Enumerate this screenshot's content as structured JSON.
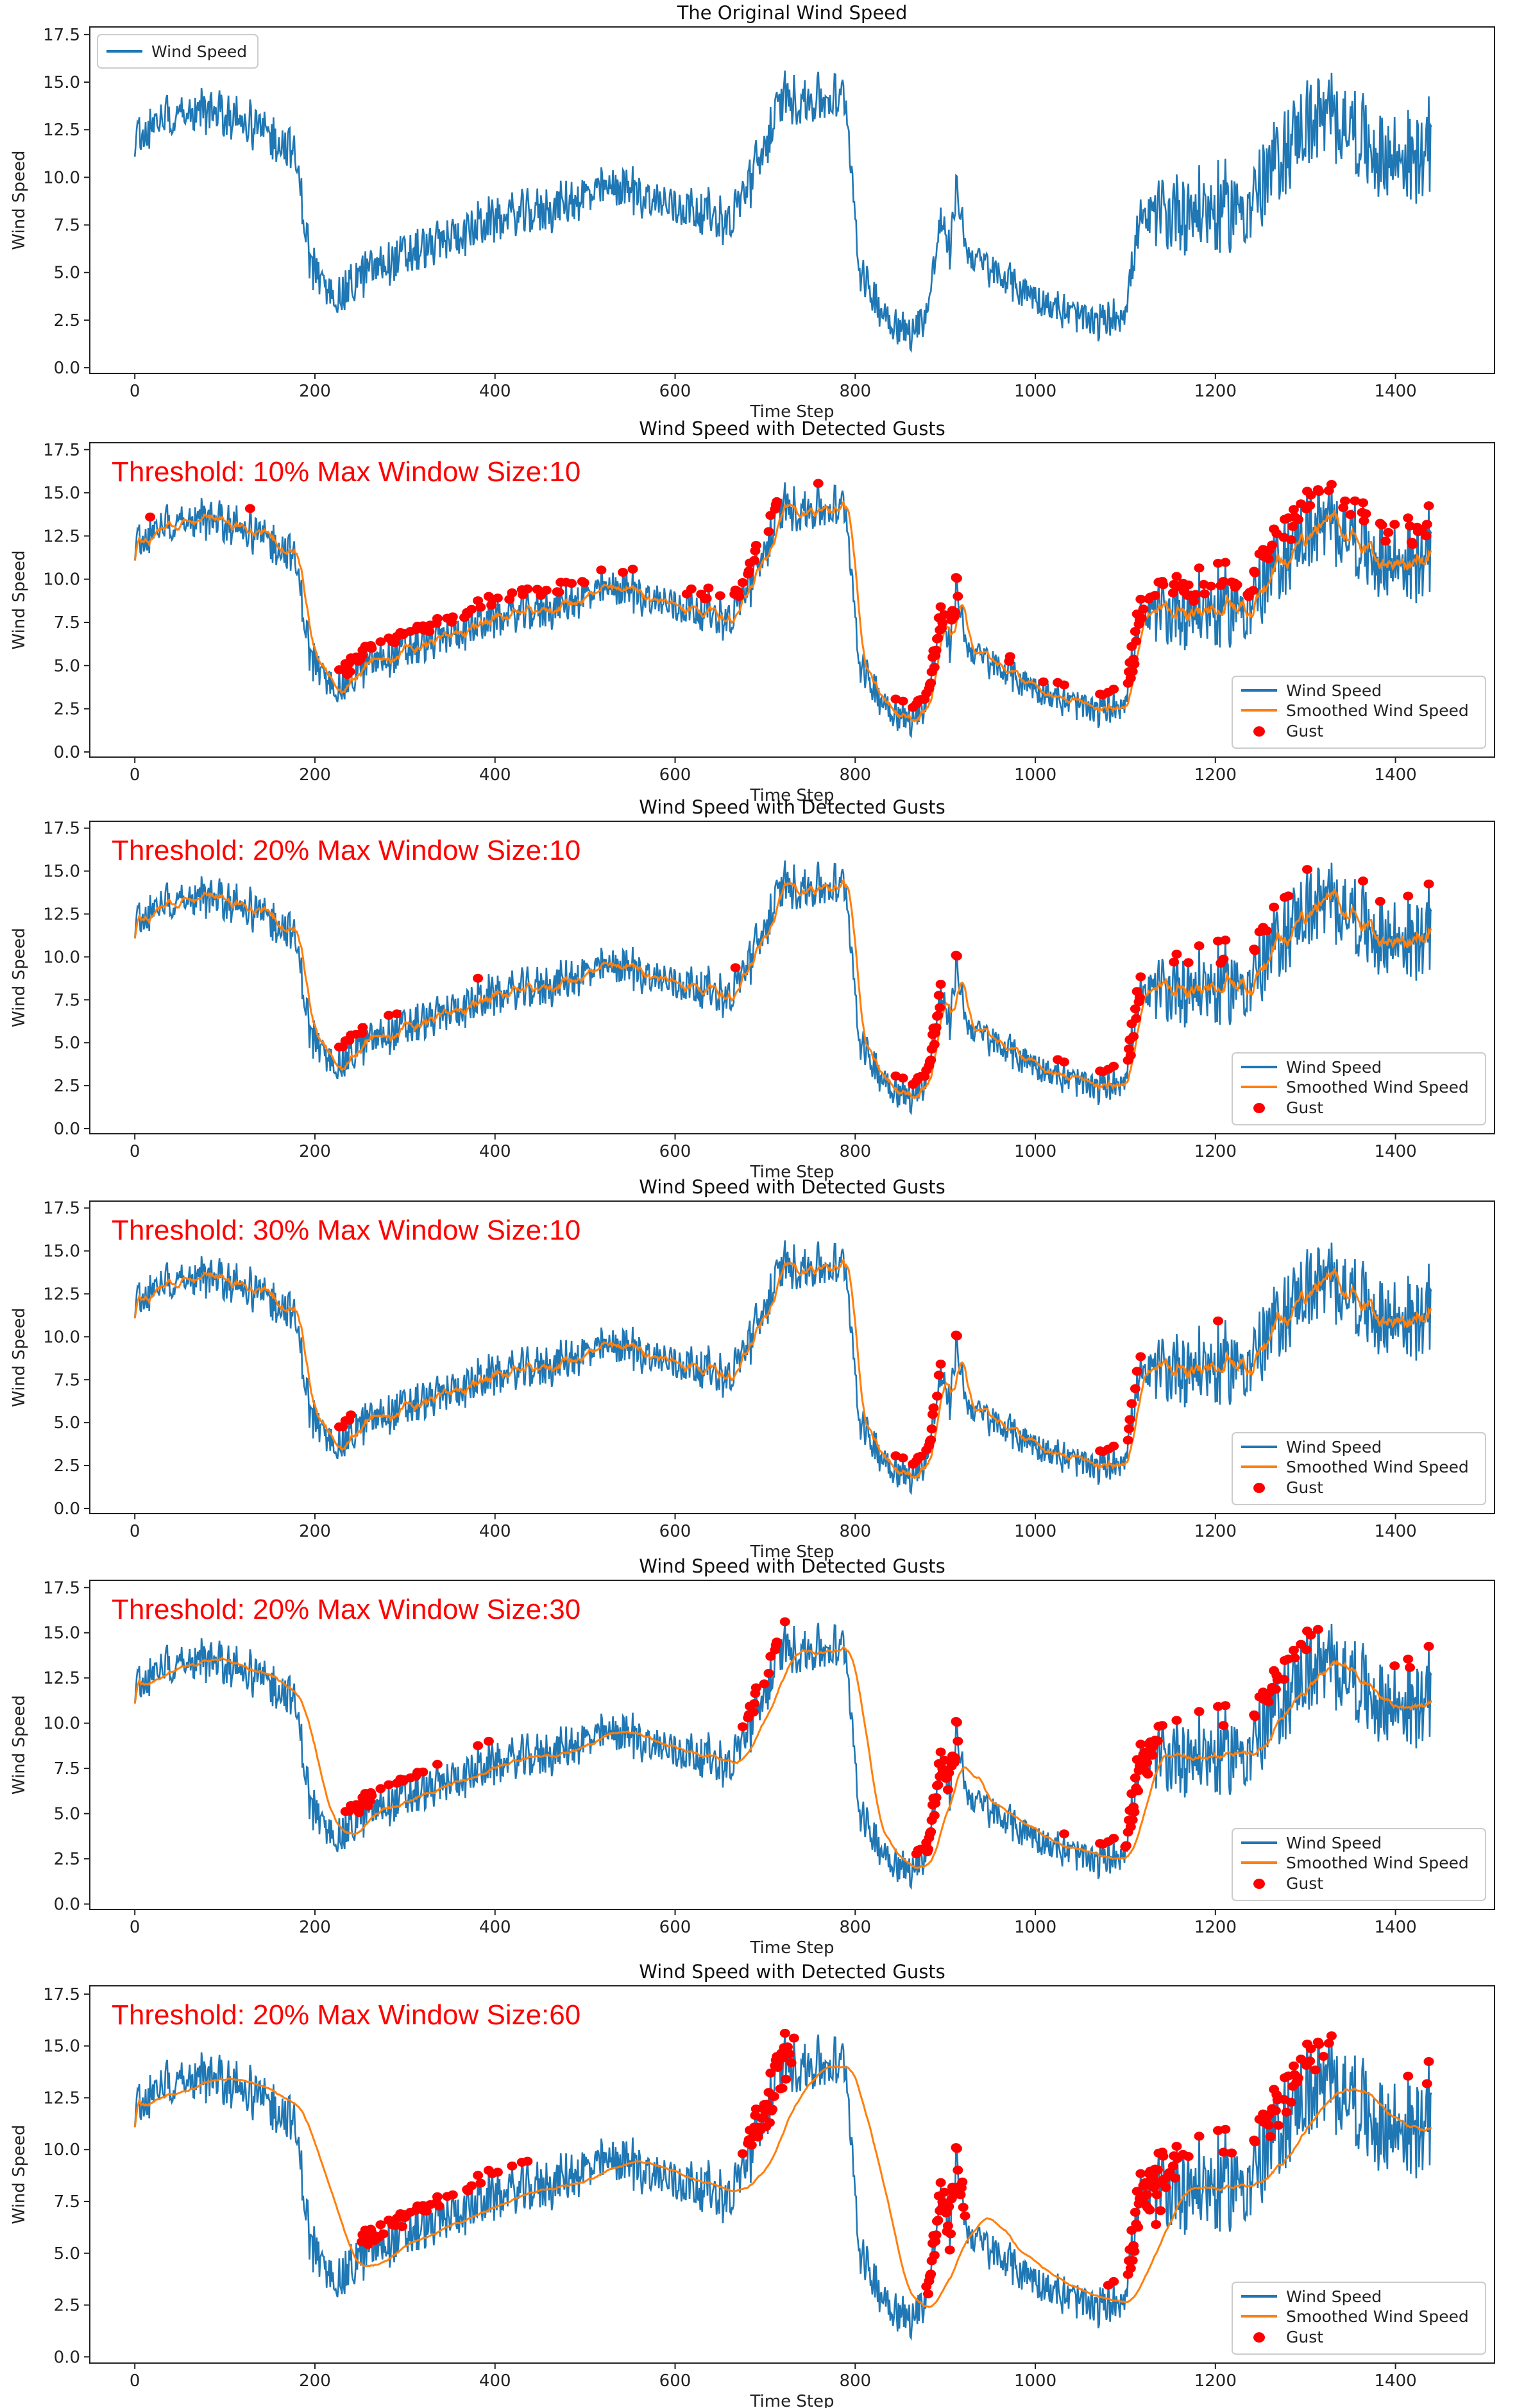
{
  "figure": {
    "xlabel": "Time Step",
    "ylabel": "Wind Speed",
    "xticks": [
      0,
      200,
      400,
      600,
      800,
      1000,
      1200,
      1400
    ],
    "xlim": [
      -50,
      1510
    ],
    "yticks": [
      0.0,
      2.5,
      5.0,
      7.5,
      10.0,
      12.5,
      15.0,
      17.5
    ],
    "ylim": [
      -0.3,
      17.9
    ],
    "colors": {
      "raw": "#1f77b4",
      "smooth": "#ff7f0e",
      "gust": "#ff0000",
      "annotation": "#ff0000"
    }
  },
  "legend_labels": {
    "raw": "Wind Speed",
    "smooth": "Smoothed Wind Speed",
    "gust": "Gust"
  },
  "chart_data": {
    "type": "line",
    "x_range": [
      0,
      1440
    ],
    "series_raw_name": "Wind Speed",
    "baseline_keypoints": [
      [
        0,
        12.0
      ],
      [
        30,
        13.2
      ],
      [
        70,
        13.6
      ],
      [
        120,
        13.0
      ],
      [
        175,
        11.5
      ],
      [
        185,
        9.0
      ],
      [
        195,
        5.5
      ],
      [
        210,
        4.2
      ],
      [
        230,
        3.8
      ],
      [
        260,
        5.2
      ],
      [
        320,
        6.2
      ],
      [
        400,
        7.8
      ],
      [
        460,
        8.3
      ],
      [
        500,
        9.0
      ],
      [
        540,
        9.6
      ],
      [
        580,
        8.7
      ],
      [
        630,
        8.3
      ],
      [
        660,
        7.6
      ],
      [
        690,
        10.5
      ],
      [
        720,
        14.2
      ],
      [
        790,
        14.0
      ],
      [
        805,
        5.0
      ],
      [
        830,
        3.0
      ],
      [
        860,
        1.7
      ],
      [
        880,
        3.0
      ],
      [
        895,
        7.8
      ],
      [
        905,
        6.0
      ],
      [
        912,
        9.5
      ],
      [
        925,
        6.0
      ],
      [
        960,
        4.8
      ],
      [
        1020,
        3.2
      ],
      [
        1070,
        2.3
      ],
      [
        1100,
        3.0
      ],
      [
        1115,
        7.5
      ],
      [
        1160,
        8.4
      ],
      [
        1200,
        8.2
      ],
      [
        1240,
        8.6
      ],
      [
        1270,
        11.0
      ],
      [
        1300,
        12.8
      ],
      [
        1340,
        13.2
      ],
      [
        1380,
        11.0
      ],
      [
        1420,
        11.0
      ],
      [
        1440,
        11.5
      ]
    ],
    "noise_amplitude": 1.1,
    "panels": [
      {
        "title": "The Original Wind Speed",
        "annotation": "",
        "threshold_pct": null,
        "window": null,
        "legend_loc": "upper left"
      },
      {
        "title": "Wind Speed with Detected Gusts",
        "annotation": "Threshold: 10% Max Window Size:10",
        "threshold_pct": 10,
        "window": 10,
        "legend_loc": "lower right"
      },
      {
        "title": "Wind Speed with Detected Gusts",
        "annotation": "Threshold: 20% Max Window Size:10",
        "threshold_pct": 20,
        "window": 10,
        "legend_loc": "lower right"
      },
      {
        "title": "Wind Speed with Detected Gusts",
        "annotation": "Threshold: 30% Max Window Size:10",
        "threshold_pct": 30,
        "window": 10,
        "legend_loc": "lower right"
      },
      {
        "title": "Wind Speed with Detected Gusts",
        "annotation": "Threshold: 20% Max Window Size:30",
        "threshold_pct": 20,
        "window": 30,
        "legend_loc": "lower right"
      },
      {
        "title": "Wind Speed with Detected Gusts",
        "annotation": "Threshold: 20% Max Window Size:60",
        "threshold_pct": 20,
        "window": 60,
        "legend_loc": "lower right"
      }
    ]
  }
}
